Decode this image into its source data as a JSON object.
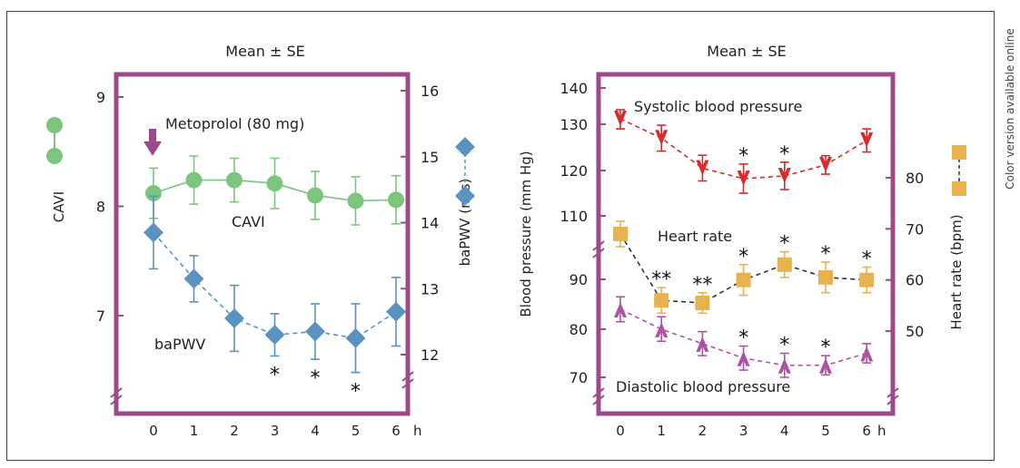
{
  "side_note": "Color version available online",
  "colors": {
    "frame": "#9d4a8d",
    "cavi": "#7cc57c",
    "bapwv": "#5b93c0",
    "sbp": "#d62c2c",
    "hr": "#e8b34f",
    "dbp": "#b052a2",
    "hr_line": "#333333",
    "arrow": "#9d4a8d"
  },
  "chart_data": [
    {
      "type": "line",
      "title": "Mean ± SE",
      "x": [
        0,
        1,
        2,
        3,
        4,
        5,
        6
      ],
      "xticklabels": [
        "0",
        "1",
        "2",
        "3",
        "4",
        "5",
        "6"
      ],
      "xunit": "h",
      "left_axis": {
        "label": "CAVI",
        "ticks": [
          7,
          8,
          9
        ],
        "range": [
          6.35,
          9.2
        ],
        "broken": true
      },
      "right_axis": {
        "label": "baPWV (m/s)",
        "ticks": [
          12,
          13,
          14,
          15,
          16
        ],
        "range": [
          11.4,
          16.2
        ],
        "broken": true
      },
      "annotation": "Metoprolol (80 mg)",
      "arrow_at_x": 0,
      "series": [
        {
          "name": "CAVI",
          "axis": "left",
          "marker": "circle",
          "line": "solid",
          "values": [
            8.12,
            8.24,
            8.24,
            8.21,
            8.1,
            8.05,
            8.06
          ],
          "se": [
            0.23,
            0.22,
            0.2,
            0.23,
            0.22,
            0.22,
            0.22
          ],
          "significance": [
            "",
            "",
            "",
            "",
            "",
            "",
            ""
          ]
        },
        {
          "name": "baPWV",
          "axis": "right",
          "marker": "diamond",
          "line": "dashed",
          "values": [
            13.85,
            13.15,
            12.55,
            12.3,
            12.35,
            12.25,
            12.65
          ],
          "se": [
            0.55,
            0.35,
            0.5,
            0.32,
            0.42,
            0.52,
            0.52
          ],
          "significance": [
            "",
            "",
            "",
            "*",
            "*",
            "*",
            ""
          ]
        }
      ],
      "legend": [
        "CAVI",
        "baPWV (m/s)"
      ]
    },
    {
      "type": "line",
      "title": "Mean ± SE",
      "x": [
        0,
        1,
        2,
        3,
        4,
        5,
        6
      ],
      "xticklabels": [
        "0",
        "1",
        "2",
        "3",
        "4",
        "5",
        "6"
      ],
      "xunit": "h",
      "left_axis": {
        "label": "Blood pressure (mm Hg)",
        "ticks": [
          70,
          80,
          90,
          110,
          120,
          130,
          140
        ],
        "broken": true
      },
      "right_axis": {
        "label": "Heart rate (bpm)",
        "ticks": [
          50,
          60,
          70,
          80
        ]
      },
      "series": [
        {
          "name": "Systolic blood pressure",
          "axis": "left",
          "marker": "triangle-down",
          "line": "dashed",
          "values": [
            131.5,
            127,
            120.5,
            118.2,
            118.8,
            121.2,
            126.5
          ],
          "se": [
            2.5,
            2.8,
            2.8,
            3.2,
            3.0,
            2.0,
            2.5
          ],
          "significance": [
            "",
            "",
            "",
            "*",
            "*",
            "",
            ""
          ]
        },
        {
          "name": "Heart rate",
          "axis": "right",
          "marker": "square",
          "line": "dashed",
          "values": [
            69,
            56,
            55.5,
            60,
            63,
            60.5,
            60
          ],
          "se": [
            2.5,
            2.5,
            2.0,
            3.0,
            2.5,
            3.0,
            2.5
          ],
          "significance": [
            "",
            "**",
            "**",
            "*",
            "*",
            "*",
            "*"
          ]
        },
        {
          "name": "Diastolic blood pressure",
          "axis": "left",
          "marker": "triangle-up",
          "line": "dashed",
          "values": [
            84,
            80,
            77,
            74,
            72.5,
            72.5,
            75
          ],
          "se": [
            2.5,
            2.5,
            2.5,
            2.5,
            2.5,
            2.0,
            2.0
          ],
          "significance": [
            "",
            "",
            "",
            "*",
            "*",
            "*",
            ""
          ]
        }
      ],
      "legend": [
        "Heart rate (bpm)"
      ]
    }
  ]
}
